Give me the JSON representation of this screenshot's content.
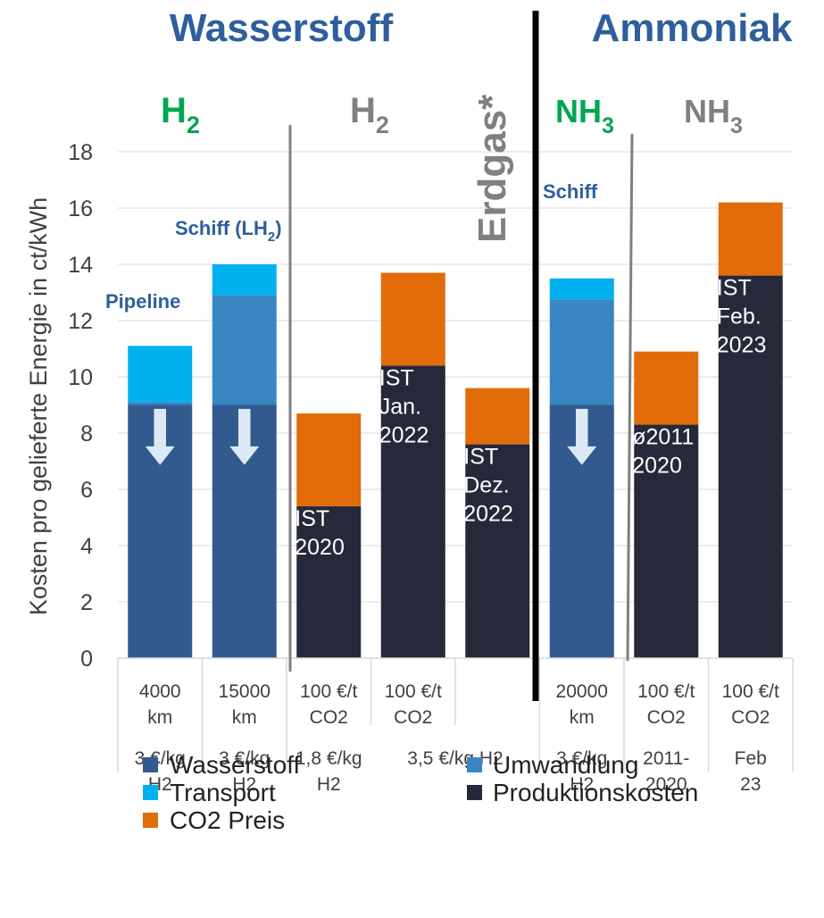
{
  "chart_data": {
    "type": "bar",
    "stacked": true,
    "ylabel": "Kosten pro gelieferte Energie in ct/kWh",
    "ylim": [
      0,
      18
    ],
    "yticks": [
      0,
      2,
      4,
      6,
      8,
      10,
      12,
      14,
      16,
      18
    ],
    "grid": true,
    "legend_position": "bottom",
    "colors": {
      "Wasserstoff": "#335A8F",
      "Umwandlung": "#3A86C2",
      "Transport": "#00B0EF",
      "Produktionskosten": "#25293A",
      "CO2 Preis": "#E26B0A",
      "title_blue": "#2E5F9C",
      "green": "#00A650",
      "gray": "#808080"
    },
    "categories": [
      {
        "label1": "4000 km",
        "label2": "3 €/kg H2"
      },
      {
        "label1": "15000 km",
        "label2": "3 €/kg H2"
      },
      {
        "label1": "100 €/t CO2",
        "label2": "1,8 €/kg H2"
      },
      {
        "label1": "100 €/t CO2",
        "label2": "3,5 €/kg H2"
      },
      {
        "label1": "",
        "label2": ""
      },
      {
        "label1": "20000 km",
        "label2": "3 €/kg H2"
      },
      {
        "label1": "100 €/t CO2",
        "label2": "2011- 2020"
      },
      {
        "label1": "100 €/t CO2",
        "label2": "Feb 23"
      }
    ],
    "series": [
      {
        "name": "Wasserstoff",
        "values": [
          9.0,
          9.0,
          0,
          0,
          0,
          9.0,
          0,
          0
        ]
      },
      {
        "name": "Umwandlung",
        "values": [
          0.1,
          3.9,
          0,
          0,
          0,
          3.75,
          0,
          0
        ]
      },
      {
        "name": "Transport",
        "values": [
          2.0,
          1.1,
          0,
          0,
          0,
          0.75,
          0,
          0
        ]
      },
      {
        "name": "Produktionskosten",
        "values": [
          0,
          0,
          5.4,
          10.4,
          7.6,
          0,
          8.3,
          13.6
        ]
      },
      {
        "name": "CO2 Preis",
        "values": [
          0,
          0,
          3.3,
          3.3,
          2.0,
          0,
          2.6,
          2.6
        ]
      }
    ],
    "bar_annotations": [
      {
        "bar": 2,
        "text": [
          "IST",
          "2020"
        ]
      },
      {
        "bar": 3,
        "text": [
          "IST",
          "Jan.",
          "2022"
        ]
      },
      {
        "bar": 4,
        "text": [
          "IST",
          "Dez.",
          "2022"
        ]
      },
      {
        "bar": 6,
        "text": [
          "ø2011",
          "2020"
        ]
      },
      {
        "bar": 7,
        "text": [
          "IST",
          "Feb.",
          "2023"
        ]
      }
    ],
    "arrows_on_bars": [
      0,
      1,
      5
    ],
    "group_titles": {
      "left": "Wasserstoff",
      "right": "Ammoniak"
    },
    "section_labels": {
      "h2_green": "H",
      "h2_gray": "H",
      "sub2": "2",
      "nh3_green": "NH",
      "nh3_gray": "NH",
      "sub3": "3",
      "erdgas": "Erdgas*"
    },
    "transport_labels": {
      "pipeline": "Pipeline",
      "schiff_lh2_main": "Schiff (LH",
      "schiff_lh2_sub": "2",
      "schiff_lh2_end": ")",
      "schiff": "Schiff"
    },
    "merged_label2": "3,5 €/kg H2"
  }
}
